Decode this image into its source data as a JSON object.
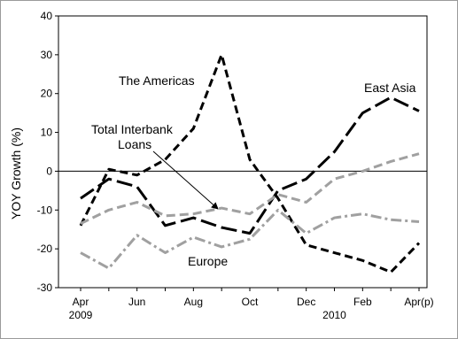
{
  "chart_data": {
    "type": "line",
    "title": "",
    "xlabel": "",
    "ylabel": "YOY Growth (%)",
    "ylim": [
      -30,
      40
    ],
    "yticks": [
      -30,
      -20,
      -10,
      0,
      10,
      20,
      30,
      40
    ],
    "grid": false,
    "x": [
      "Apr 2009",
      "May 2009",
      "Jun 2009",
      "Jul 2009",
      "Aug 2009",
      "Sep 2009",
      "Oct 2009",
      "Nov 2009",
      "Dec 2009",
      "Jan 2010",
      "Feb 2010",
      "Mar 2010",
      "Apr 2010"
    ],
    "x_tick_labels": [
      {
        "index": 0,
        "label": "Apr"
      },
      {
        "index": 2,
        "label": "Jun"
      },
      {
        "index": 4,
        "label": "Aug"
      },
      {
        "index": 6,
        "label": "Oct"
      },
      {
        "index": 8,
        "label": "Dec"
      },
      {
        "index": 10,
        "label": "Feb"
      },
      {
        "index": 12,
        "label": "Apr(p)"
      }
    ],
    "year_labels": [
      {
        "index": 0,
        "label": "2009"
      },
      {
        "index": 9,
        "label": "2010"
      }
    ],
    "series": [
      {
        "name": "The Americas",
        "color": "#000000",
        "style": "short-dash",
        "values": [
          -14,
          0.5,
          -1,
          3,
          11,
          30,
          3,
          -7,
          -19,
          -21,
          -23,
          -26,
          -18.5
        ]
      },
      {
        "name": "East Asia",
        "color": "#000000",
        "style": "long-dash",
        "values": [
          -7,
          -2,
          -4,
          -14,
          -12,
          -14.5,
          -16,
          -5,
          -2,
          5,
          15,
          19,
          15.5
        ]
      },
      {
        "name": "Total Interbank Loans",
        "color": "#a0a0a0",
        "style": "dash",
        "values": [
          -13.5,
          -10,
          -8,
          -11.5,
          -11,
          -9.5,
          -11,
          -6,
          -8,
          -2,
          0,
          2.5,
          4.5
        ]
      },
      {
        "name": "Europe",
        "color": "#a0a0a0",
        "style": "dash-dot",
        "values": [
          -21,
          -25,
          -16.5,
          -21,
          -17,
          -19.5,
          -17.5,
          -10,
          -16,
          -12,
          -11,
          -12.5,
          -13
        ]
      }
    ],
    "annotations": [
      {
        "text": "The Americas",
        "series": "The Americas"
      },
      {
        "text": "East Asia",
        "series": "East Asia"
      },
      {
        "text": "Total Interbank",
        "series": "Total Interbank Loans"
      },
      {
        "text": "Loans",
        "series": "Total Interbank Loans"
      },
      {
        "text": "Europe",
        "series": "Europe"
      }
    ]
  }
}
